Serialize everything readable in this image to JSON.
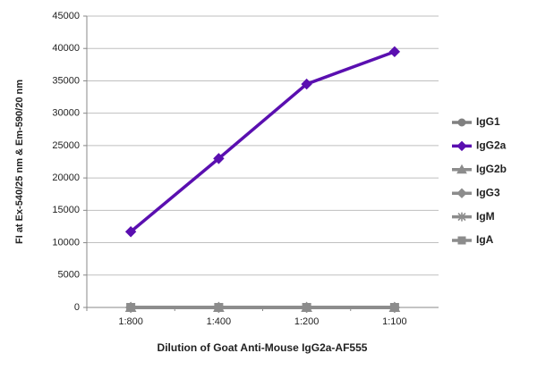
{
  "chart_data": {
    "type": "line",
    "y_label": "FI at Ex-540/25  nm & Em-590/20  nm",
    "x_label": "Dilution of Goat Anti-Mouse IgG2a-AF555",
    "categories": [
      "1:800",
      "1:400",
      "1:200",
      "1:100"
    ],
    "series": [
      {
        "name": "IgG1",
        "color": "#808080",
        "marker": "circle",
        "values": [
          0,
          0,
          0,
          0
        ]
      },
      {
        "name": "IgG2a",
        "color": "#5a0fb0",
        "marker": "diamond",
        "values": [
          11700,
          23000,
          34500,
          39500
        ]
      },
      {
        "name": "IgG2b",
        "color": "#8c8c8c",
        "marker": "triangle",
        "values": [
          0,
          0,
          0,
          0
        ]
      },
      {
        "name": "IgG3",
        "color": "#8c8c8c",
        "marker": "diamond",
        "values": [
          0,
          0,
          0,
          0
        ]
      },
      {
        "name": "IgM",
        "color": "#8c8c8c",
        "marker": "asterisk",
        "values": [
          0,
          0,
          0,
          0
        ]
      },
      {
        "name": "IgA",
        "color": "#8c8c8c",
        "marker": "square",
        "values": [
          0,
          0,
          0,
          0
        ]
      }
    ],
    "ylim": [
      0,
      45000
    ],
    "yticks": [
      0,
      5000,
      10000,
      15000,
      20000,
      25000,
      30000,
      35000,
      40000,
      45000
    ],
    "grid": true
  }
}
